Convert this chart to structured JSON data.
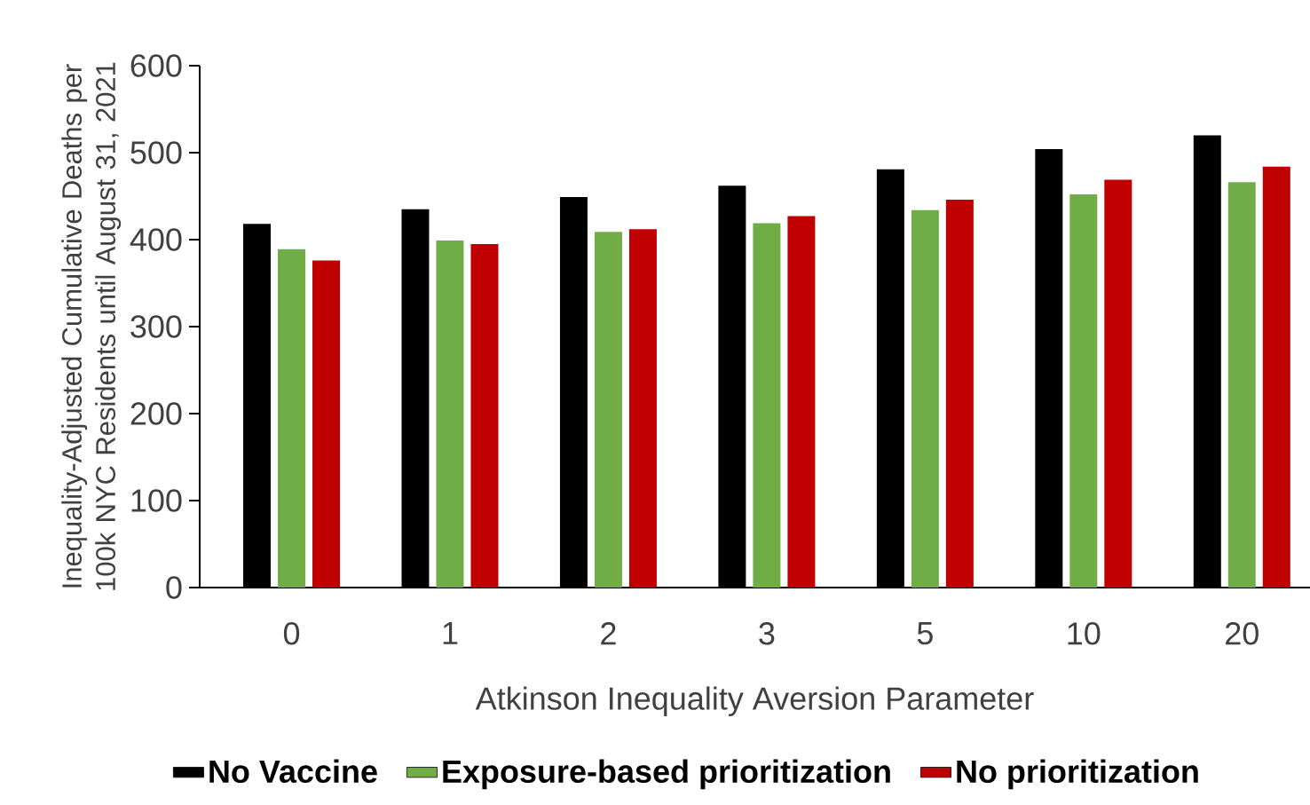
{
  "chart_data": {
    "type": "bar",
    "categories": [
      "0",
      "1",
      "2",
      "3",
      "5",
      "10",
      "20"
    ],
    "xlabel": "Atkinson Inequality Aversion Parameter",
    "ylabel": "Inequality-Adjusted Cumulative Deaths per 100k NYC Residents until August 31, 2021",
    "ylim": [
      0,
      600
    ],
    "yticks": [
      0,
      100,
      200,
      300,
      400,
      500,
      600
    ],
    "grid": false,
    "legend": "bottom",
    "series": [
      {
        "name": "No Vaccine",
        "color": "#000000",
        "values": [
          418,
          435,
          449,
          462,
          481,
          504,
          520
        ]
      },
      {
        "name": "Exposure-based prioritization",
        "color": "#70ad47",
        "values": [
          389,
          399,
          409,
          419,
          434,
          452,
          466
        ]
      },
      {
        "name": "No prioritization",
        "color": "#c00000",
        "values": [
          376,
          395,
          412,
          427,
          446,
          469,
          484
        ]
      }
    ]
  }
}
